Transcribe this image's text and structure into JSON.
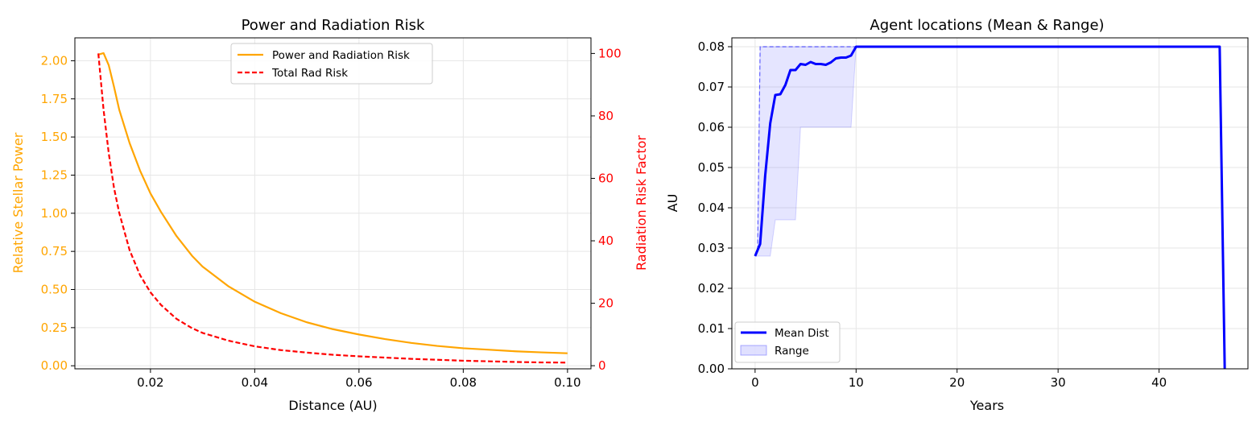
{
  "colors": {
    "power": "#FFA500",
    "risk": "#FF0000",
    "mean": "#0000FF",
    "range_fill": "#0000FF"
  },
  "chart_data": [
    {
      "type": "line",
      "title": "Power and Radiation Risk",
      "xlabel": "Distance (AU)",
      "ylabel": "Relative Stellar Power",
      "y2label": "Radiation Risk Factor",
      "xlim": [
        0.0055,
        0.1045
      ],
      "ylim": [
        -0.02,
        2.15
      ],
      "y2lim": [
        -1,
        105
      ],
      "xticks": [
        "0.02",
        "0.04",
        "0.06",
        "0.08",
        "0.10"
      ],
      "yticks": [
        "0.00",
        "0.25",
        "0.50",
        "0.75",
        "1.00",
        "1.25",
        "1.50",
        "1.75",
        "2.00"
      ],
      "y2ticks": [
        "0",
        "20",
        "40",
        "60",
        "80",
        "100"
      ],
      "grid": true,
      "legend": "upper-center",
      "series": [
        {
          "name": "Power and Radiation Risk",
          "axis": "left",
          "style": "solid",
          "x": [
            0.01,
            0.011,
            0.012,
            0.013,
            0.014,
            0.016,
            0.018,
            0.02,
            0.022,
            0.025,
            0.028,
            0.03,
            0.035,
            0.04,
            0.045,
            0.05,
            0.055,
            0.06,
            0.065,
            0.07,
            0.075,
            0.08,
            0.085,
            0.09,
            0.095,
            0.1
          ],
          "y": [
            2.04,
            2.05,
            1.97,
            1.83,
            1.68,
            1.46,
            1.28,
            1.13,
            1.01,
            0.85,
            0.72,
            0.65,
            0.52,
            0.42,
            0.345,
            0.285,
            0.24,
            0.205,
            0.175,
            0.15,
            0.13,
            0.115,
            0.105,
            0.095,
            0.088,
            0.082
          ]
        },
        {
          "name": "Total Rad Risk",
          "axis": "right",
          "style": "dashed",
          "x": [
            0.01,
            0.011,
            0.012,
            0.013,
            0.014,
            0.016,
            0.018,
            0.02,
            0.022,
            0.025,
            0.028,
            0.03,
            0.035,
            0.04,
            0.045,
            0.05,
            0.055,
            0.06,
            0.065,
            0.07,
            0.075,
            0.08,
            0.085,
            0.09,
            0.095,
            0.1
          ],
          "y": [
            100,
            82,
            68,
            57,
            49,
            37,
            29,
            23.5,
            19.5,
            15,
            12,
            10.5,
            8,
            6.2,
            5,
            4.2,
            3.5,
            3,
            2.6,
            2.2,
            1.9,
            1.6,
            1.4,
            1.2,
            1.05,
            1
          ]
        }
      ]
    },
    {
      "type": "line",
      "title": "Agent locations (Mean & Range)",
      "xlabel": "Years",
      "ylabel": "AU",
      "xlim": [
        -2.3,
        48.8
      ],
      "ylim": [
        0,
        0.0822
      ],
      "xticks": [
        "0",
        "10",
        "20",
        "30",
        "40"
      ],
      "yticks": [
        "0.00",
        "0.01",
        "0.02",
        "0.03",
        "0.04",
        "0.05",
        "0.06",
        "0.07",
        "0.08"
      ],
      "grid": true,
      "legend": "lower-left",
      "series": [
        {
          "name": "Mean Dist",
          "x": [
            0,
            0.5,
            1,
            1.5,
            2,
            2.5,
            3,
            3.5,
            4,
            4.5,
            5,
            5.5,
            6,
            6.5,
            7,
            7.5,
            8,
            8.5,
            9,
            9.5,
            10,
            20,
            30,
            40,
            46,
            46.5
          ],
          "y": [
            0.028,
            0.031,
            0.048,
            0.061,
            0.068,
            0.0682,
            0.0705,
            0.0742,
            0.0742,
            0.0757,
            0.0755,
            0.0762,
            0.0757,
            0.0757,
            0.0755,
            0.0761,
            0.0771,
            0.0773,
            0.0773,
            0.0778,
            0.08,
            0.08,
            0.08,
            0.08,
            0.08,
            0
          ]
        },
        {
          "name": "Range",
          "x": [
            0,
            0.25,
            0.5,
            1,
            1.5,
            2,
            2.5,
            3,
            3.5,
            4,
            4.5,
            5,
            6,
            7,
            8,
            9,
            9.5,
            10
          ],
          "lower": [
            0.028,
            0.028,
            0.028,
            0.028,
            0.028,
            0.037,
            0.037,
            0.037,
            0.037,
            0.037,
            0.06,
            0.06,
            0.06,
            0.06,
            0.06,
            0.06,
            0.06,
            0.08
          ],
          "upper": [
            0.028,
            0.03,
            0.08,
            0.08,
            0.08,
            0.08,
            0.08,
            0.08,
            0.08,
            0.08,
            0.08,
            0.08,
            0.08,
            0.08,
            0.08,
            0.08,
            0.08,
            0.08
          ]
        }
      ]
    }
  ]
}
